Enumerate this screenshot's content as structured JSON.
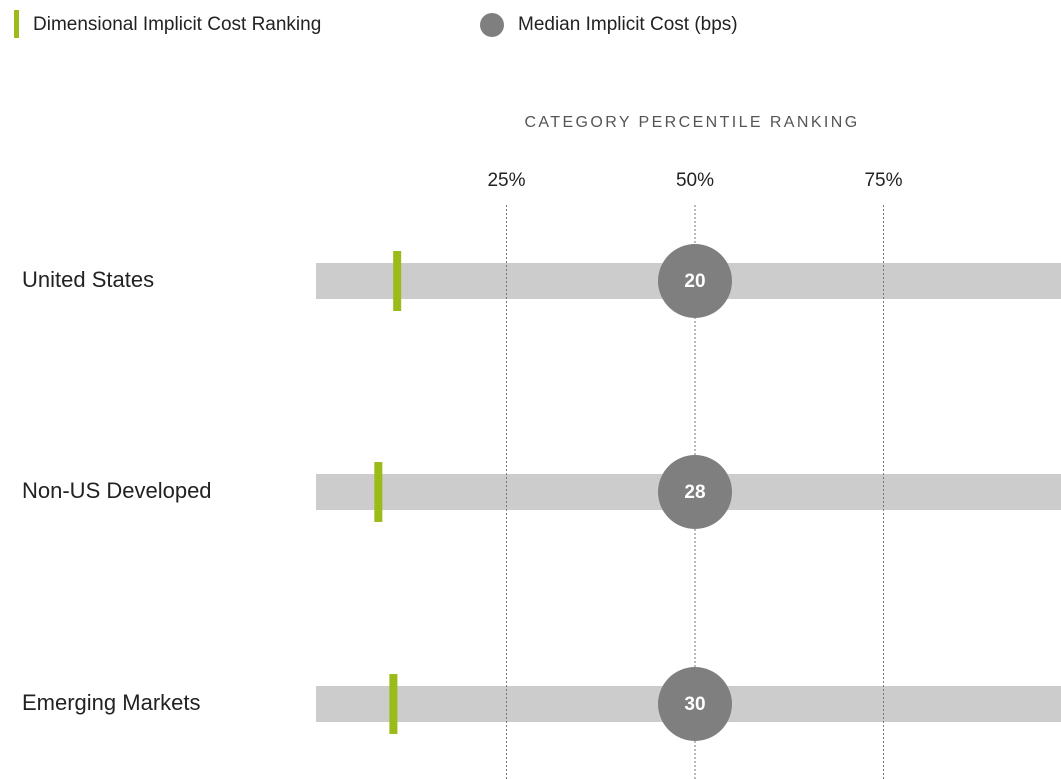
{
  "chart_data": {
    "type": "dot-range",
    "xlabel": "CATEGORY PERCENTILE RANKING",
    "categories": [
      "United States",
      "Non-US Developed",
      "Emerging Markets"
    ],
    "xlim": [
      0,
      100
    ],
    "xticks": [
      {
        "value": 25,
        "label": "25%"
      },
      {
        "value": 50,
        "label": "50%"
      },
      {
        "value": 75,
        "label": "75%"
      }
    ],
    "grid": true,
    "series": [
      {
        "name": "Dimensional Implicit Cost Ranking",
        "color": "#9bbb1a",
        "values": [
          10.5,
          8,
          10
        ]
      },
      {
        "name": "Median Implicit Cost (bps)",
        "color": "#7f7f7f",
        "values": [
          20,
          28,
          30
        ],
        "positions": [
          50,
          50,
          50
        ]
      }
    ]
  }
}
